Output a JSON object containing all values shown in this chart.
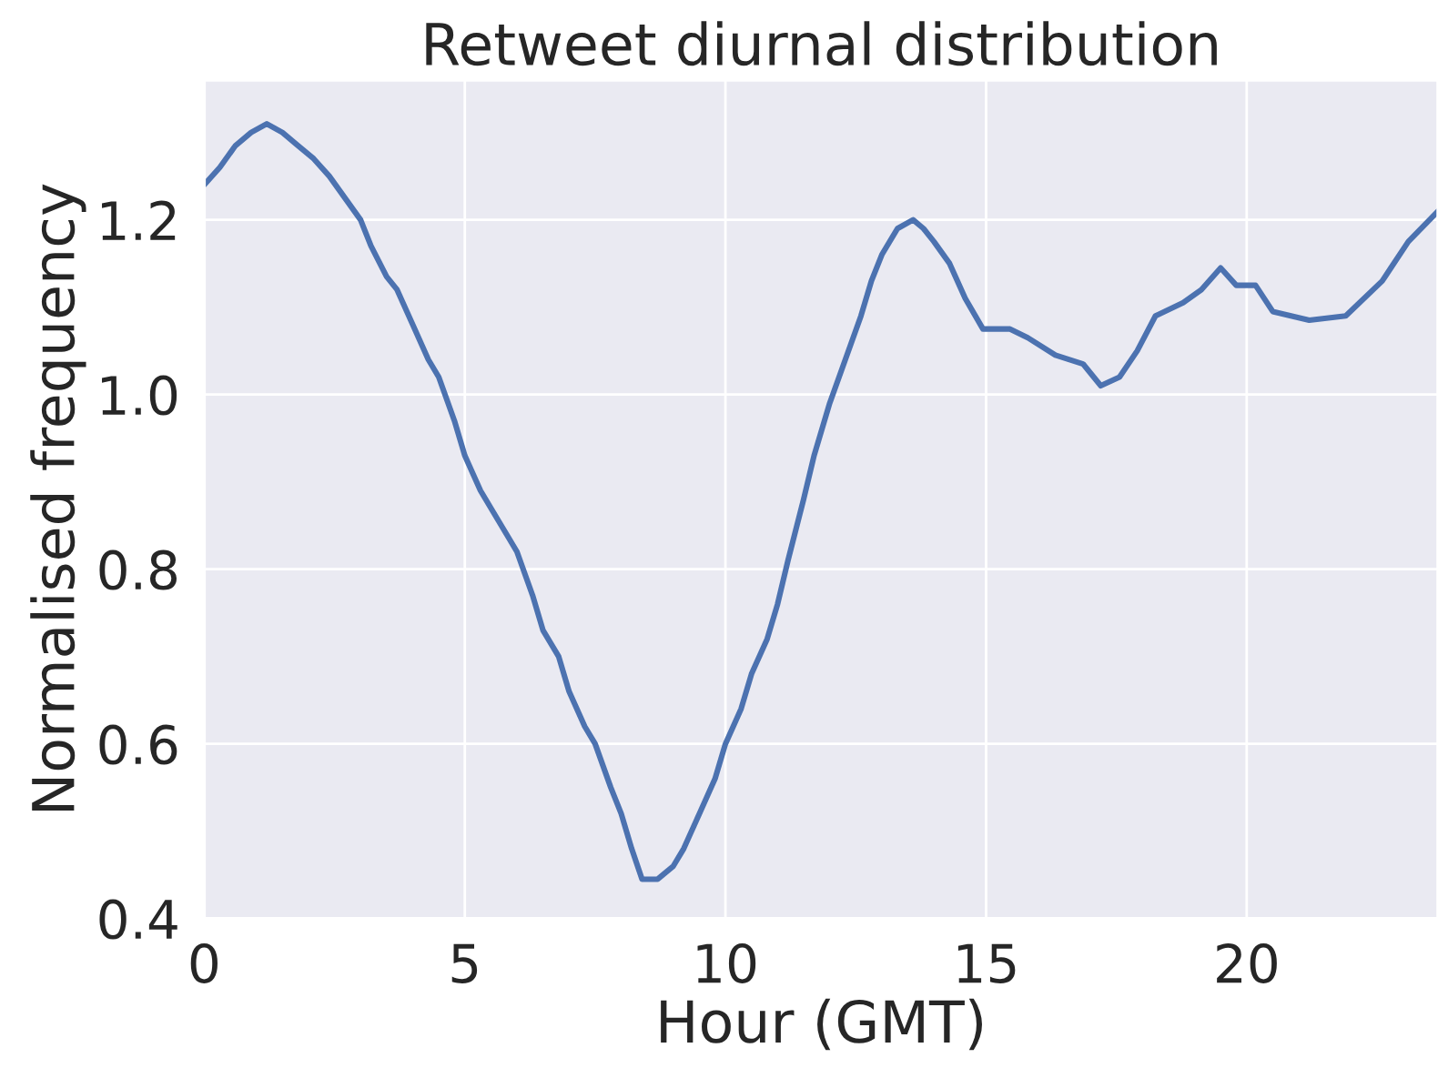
{
  "chart_data": {
    "type": "line",
    "title": "Retweet diurnal distribution",
    "xlabel": "Hour (GMT)",
    "ylabel": "Normalised frequency",
    "xlim": [
      0,
      23.67
    ],
    "ylim": [
      0.4,
      1.36
    ],
    "xticks": [
      0,
      5,
      10,
      15,
      20
    ],
    "yticks": [
      0.4,
      0.6,
      0.8,
      {
        "value": 1,
        "label": "1.0"
      },
      1.2
    ],
    "grid": true,
    "series": [
      {
        "color": "#4c72b0",
        "x": [
          0,
          0.3,
          0.6,
          0.9,
          1.2,
          1.5,
          1.8,
          2.1,
          2.4,
          2.7,
          3.0,
          3.2,
          3.5,
          3.7,
          4.0,
          4.3,
          4.5,
          4.8,
          5.0,
          5.3,
          5.5,
          5.8,
          6.0,
          6.3,
          6.5,
          6.8,
          7.0,
          7.3,
          7.5,
          7.8,
          8.0,
          8.2,
          8.4,
          8.7,
          9.0,
          9.2,
          9.5,
          9.8,
          10.0,
          10.3,
          10.5,
          10.8,
          11.0,
          11.2,
          11.5,
          11.7,
          12.0,
          12.3,
          12.6,
          12.8,
          13.0,
          13.3,
          13.6,
          13.8,
          14.0,
          14.3,
          14.6,
          14.94,
          15.46,
          15.8,
          16.33,
          16.86,
          17.2,
          17.56,
          17.9,
          18.25,
          18.78,
          19.13,
          19.5,
          19.8,
          20.17,
          20.5,
          21.2,
          21.9,
          22.6,
          23.1,
          23.67
        ],
        "values": [
          1.24,
          1.26,
          1.285,
          1.3,
          1.31,
          1.3,
          1.285,
          1.27,
          1.25,
          1.225,
          1.2,
          1.17,
          1.135,
          1.12,
          1.08,
          1.04,
          1.02,
          0.97,
          0.93,
          0.89,
          0.87,
          0.84,
          0.82,
          0.77,
          0.73,
          0.7,
          0.66,
          0.62,
          0.6,
          0.55,
          0.52,
          0.48,
          0.445,
          0.445,
          0.46,
          0.48,
          0.52,
          0.56,
          0.6,
          0.64,
          0.68,
          0.72,
          0.76,
          0.81,
          0.88,
          0.93,
          0.99,
          1.04,
          1.09,
          1.13,
          1.16,
          1.19,
          1.2,
          1.19,
          1.175,
          1.15,
          1.11,
          1.075,
          1.075,
          1.065,
          1.045,
          1.035,
          1.01,
          1.02,
          1.05,
          1.09,
          1.105,
          1.12,
          1.145,
          1.125,
          1.125,
          1.095,
          1.085,
          1.09,
          1.13,
          1.175,
          1.21
        ]
      }
    ]
  }
}
